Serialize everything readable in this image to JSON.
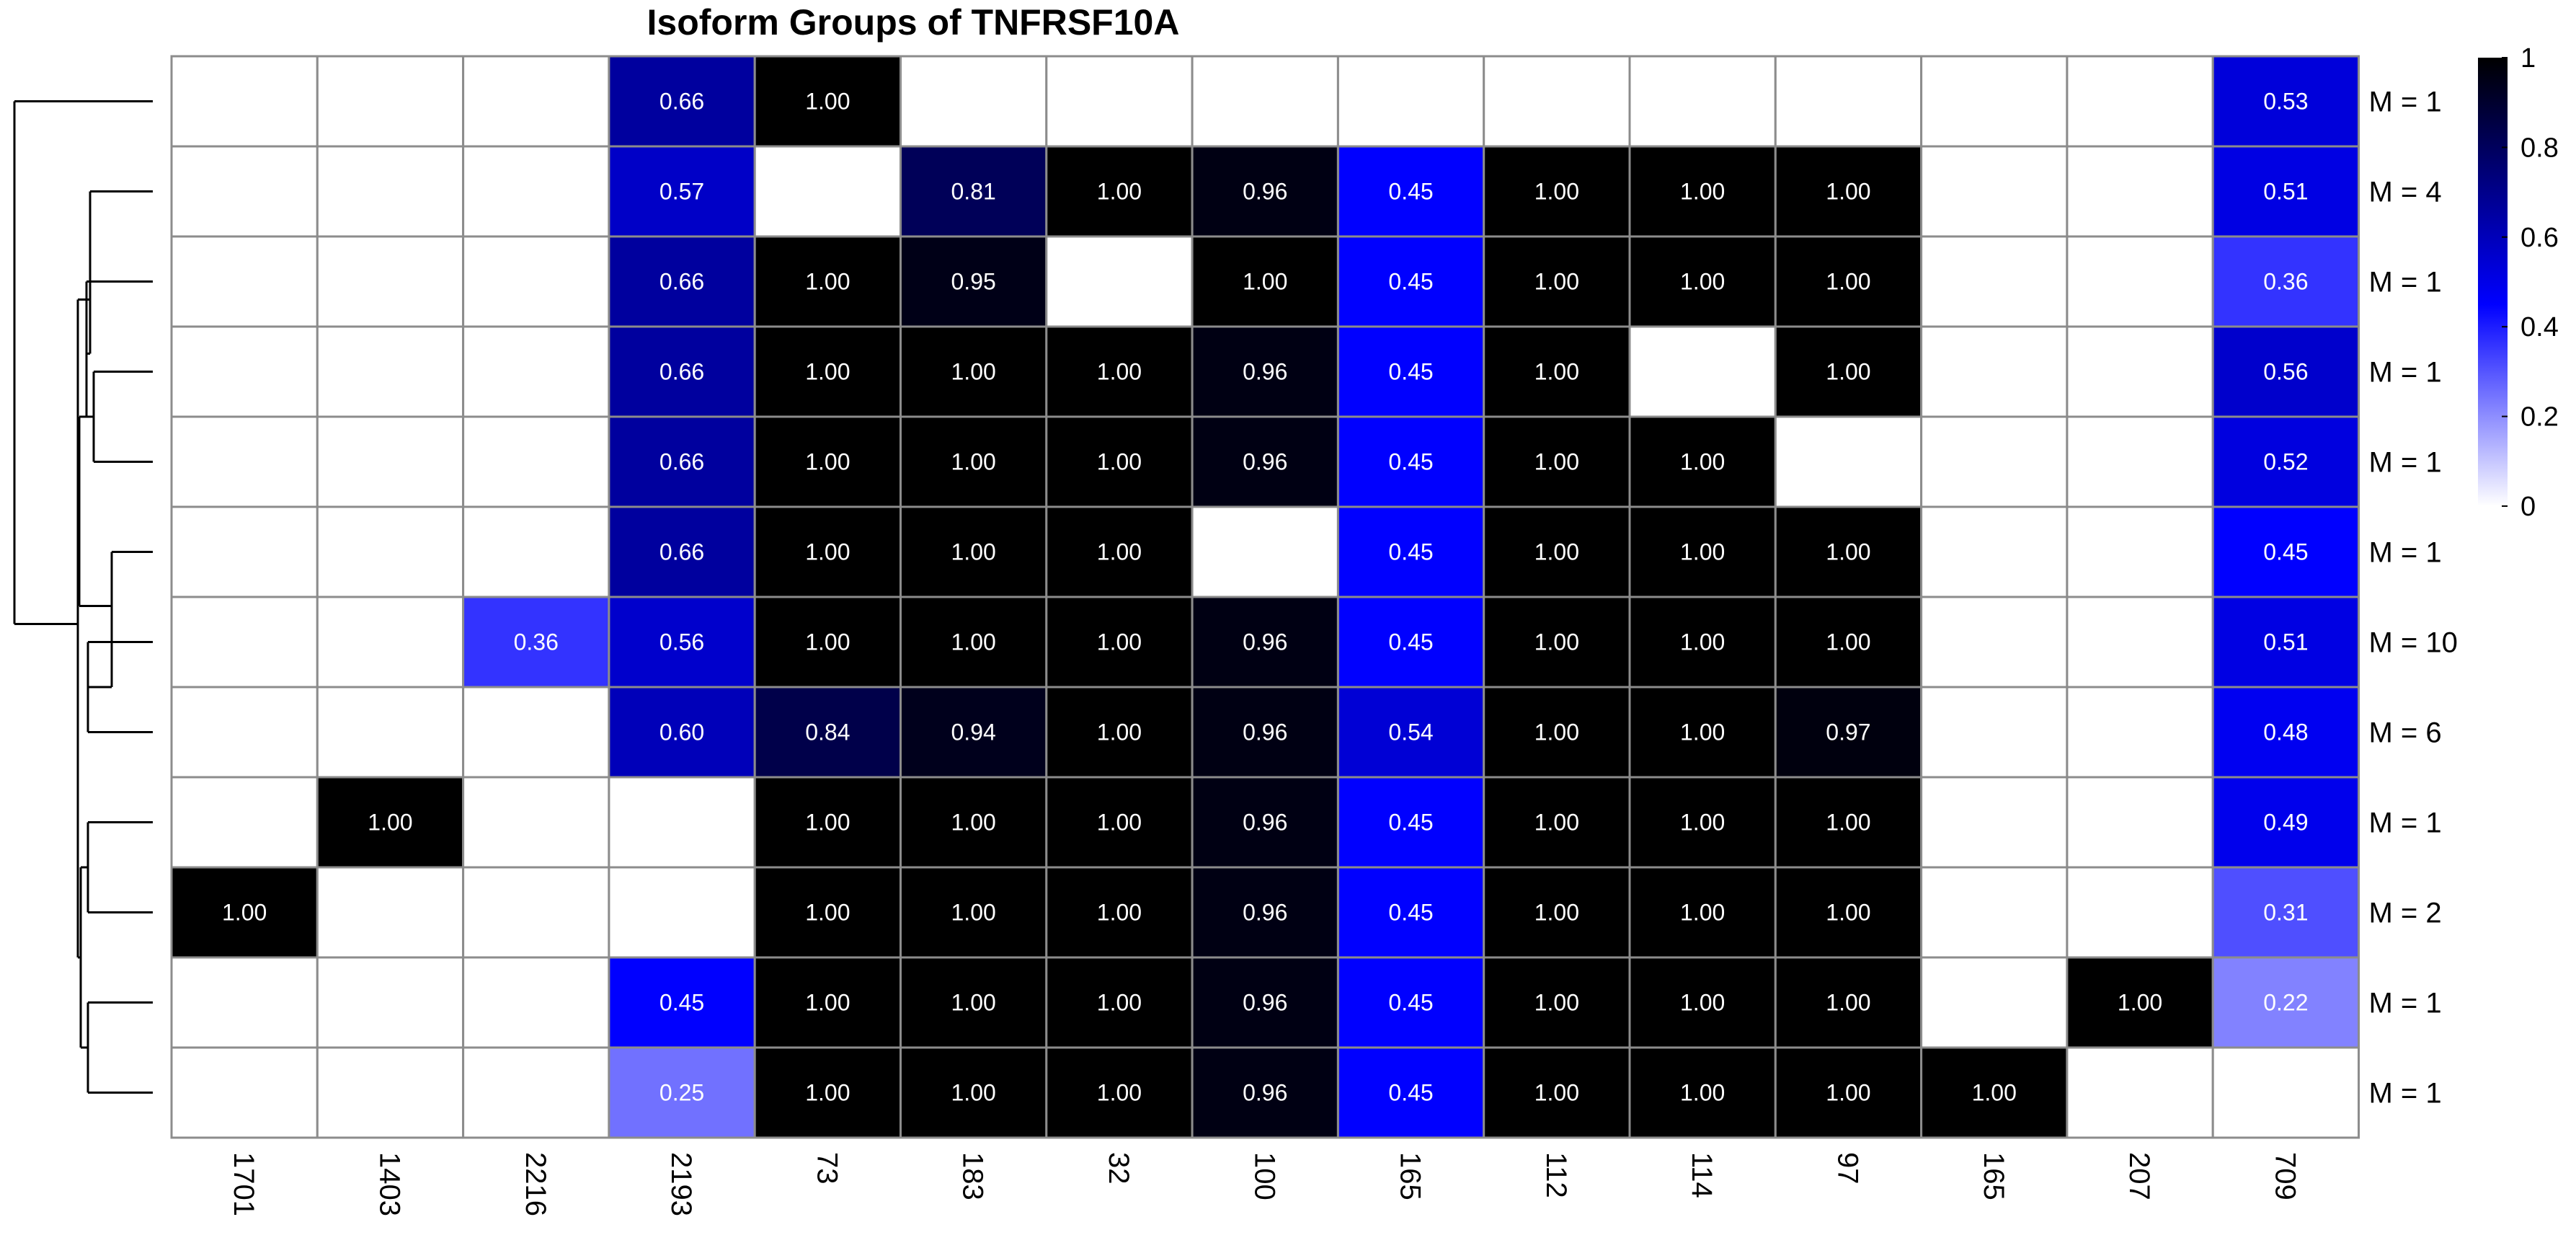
{
  "chart_data": {
    "type": "heatmap",
    "title": "Isoform Groups of TNFRSF10A",
    "columns": [
      "1701",
      "1403",
      "2216",
      "2193",
      "73",
      "183",
      "32",
      "100",
      "165",
      "112",
      "114",
      "97",
      "165",
      "207",
      "709"
    ],
    "rows": [
      "M = 1",
      "M = 4",
      "M = 1",
      "M = 1",
      "M = 1",
      "M = 1",
      "M = 10",
      "M = 6",
      "M = 1",
      "M = 2",
      "M = 1",
      "M = 1"
    ],
    "values": [
      [
        null,
        null,
        null,
        0.66,
        1.0,
        null,
        null,
        null,
        null,
        null,
        null,
        null,
        null,
        null,
        0.53
      ],
      [
        null,
        null,
        null,
        0.57,
        null,
        0.81,
        1.0,
        0.96,
        0.45,
        1.0,
        1.0,
        1.0,
        null,
        null,
        0.51
      ],
      [
        null,
        null,
        null,
        0.66,
        1.0,
        0.95,
        null,
        1.0,
        0.45,
        1.0,
        1.0,
        1.0,
        null,
        null,
        0.36
      ],
      [
        null,
        null,
        null,
        0.66,
        1.0,
        1.0,
        1.0,
        0.96,
        0.45,
        1.0,
        null,
        1.0,
        null,
        null,
        0.56
      ],
      [
        null,
        null,
        null,
        0.66,
        1.0,
        1.0,
        1.0,
        0.96,
        0.45,
        1.0,
        1.0,
        null,
        null,
        null,
        0.52
      ],
      [
        null,
        null,
        null,
        0.66,
        1.0,
        1.0,
        1.0,
        null,
        0.45,
        1.0,
        1.0,
        1.0,
        null,
        null,
        0.45
      ],
      [
        null,
        null,
        0.36,
        0.56,
        1.0,
        1.0,
        1.0,
        0.96,
        0.45,
        1.0,
        1.0,
        1.0,
        null,
        null,
        0.51
      ],
      [
        null,
        null,
        null,
        0.6,
        0.84,
        0.94,
        1.0,
        0.96,
        0.54,
        1.0,
        1.0,
        0.97,
        null,
        null,
        0.48
      ],
      [
        null,
        1.0,
        null,
        null,
        1.0,
        1.0,
        1.0,
        0.96,
        0.45,
        1.0,
        1.0,
        1.0,
        null,
        null,
        0.49
      ],
      [
        1.0,
        null,
        null,
        null,
        1.0,
        1.0,
        1.0,
        0.96,
        0.45,
        1.0,
        1.0,
        1.0,
        null,
        null,
        0.31
      ],
      [
        null,
        null,
        null,
        0.45,
        1.0,
        1.0,
        1.0,
        0.96,
        0.45,
        1.0,
        1.0,
        1.0,
        null,
        1.0,
        0.22
      ],
      [
        null,
        null,
        null,
        0.25,
        1.0,
        1.0,
        1.0,
        0.96,
        0.45,
        1.0,
        1.0,
        1.0,
        1.0,
        null,
        null
      ]
    ],
    "color_scale": {
      "stops": [
        {
          "value": 0,
          "color": "#ffffff"
        },
        {
          "value": 0.45,
          "color": "#0000ff"
        },
        {
          "value": 1,
          "color": "#000000"
        }
      ],
      "range": [
        0,
        1
      ]
    },
    "legend": {
      "position": "top-right",
      "ticks": [
        "1",
        "0.8",
        "0.6",
        "0.4",
        "0.2",
        "0"
      ]
    },
    "dendrogram": "left"
  }
}
